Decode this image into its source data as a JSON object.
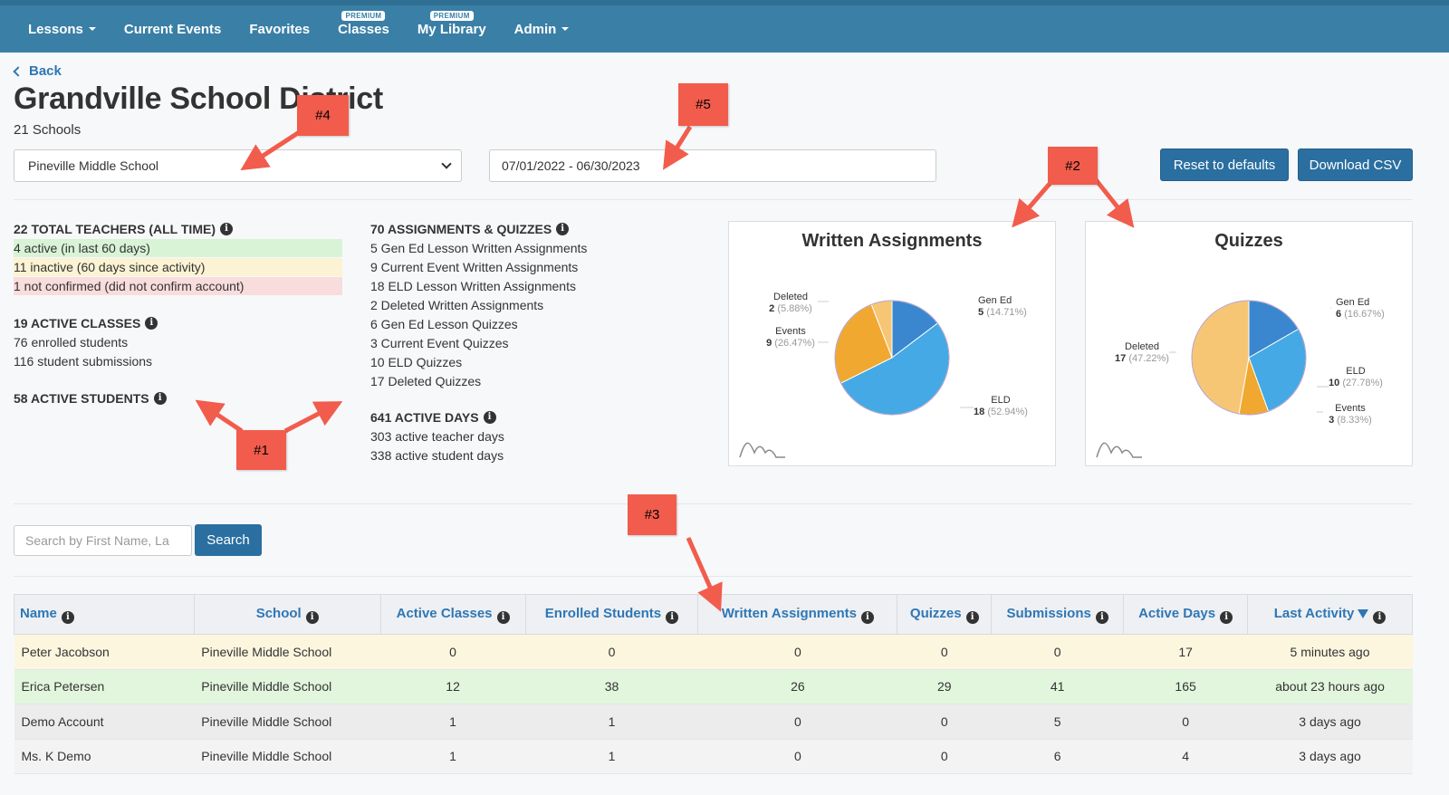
{
  "nav": {
    "items": [
      {
        "label": "Lessons",
        "caret": true,
        "badge": ""
      },
      {
        "label": "Current Events",
        "caret": false,
        "badge": ""
      },
      {
        "label": "Favorites",
        "caret": false,
        "badge": ""
      },
      {
        "label": "Classes",
        "caret": false,
        "badge": "PREMIUM"
      },
      {
        "label": "My Library",
        "caret": false,
        "badge": "PREMIUM"
      },
      {
        "label": "Admin",
        "caret": true,
        "badge": ""
      }
    ]
  },
  "header": {
    "back_label": "Back",
    "title": "Grandville School District",
    "subtitle": "21 Schools"
  },
  "filters": {
    "school_selected": "Pineville Middle School",
    "date_range": "07/01/2022 - 06/30/2023",
    "reset_label": "Reset to defaults",
    "download_label": "Download CSV"
  },
  "stats": {
    "teachers": {
      "heading": "22 TOTAL TEACHERS (ALL TIME)",
      "active": "4 active (in last 60 days)",
      "inactive": "11 inactive (60 days since activity)",
      "unconfirmed": "1 not confirmed (did not confirm account)"
    },
    "classes": {
      "heading": "19 ACTIVE CLASSES",
      "lines": [
        "76 enrolled students",
        "116 student submissions"
      ]
    },
    "students": {
      "heading": "58 ACTIVE STUDENTS"
    },
    "assignments": {
      "heading": "70 ASSIGNMENTS & QUIZZES",
      "lines": [
        "5 Gen Ed Lesson Written Assignments",
        "9 Current Event Written Assignments",
        "18 ELD Lesson Written Assignments",
        "2 Deleted Written Assignments",
        "6 Gen Ed Lesson Quizzes",
        "3 Current Event Quizzes",
        "10 ELD Quizzes",
        "17 Deleted Quizzes"
      ]
    },
    "active_days": {
      "heading": "641 ACTIVE DAYS",
      "lines": [
        "303 active teacher days",
        "338 active student days"
      ]
    }
  },
  "chart_data": [
    {
      "type": "pie",
      "title": "Written Assignments",
      "labels": [
        "Gen Ed",
        "ELD",
        "Events",
        "Deleted"
      ],
      "values": [
        5,
        18,
        9,
        2
      ],
      "percents": [
        "(14.71%)",
        "(52.94%)",
        "(26.47%)",
        "(5.88%)"
      ],
      "colors": [
        "#3a87d0",
        "#44a9e4",
        "#f0a830",
        "#f6c675"
      ]
    },
    {
      "type": "pie",
      "title": "Quizzes",
      "labels": [
        "Gen Ed",
        "ELD",
        "Events",
        "Deleted"
      ],
      "values": [
        6,
        10,
        3,
        17
      ],
      "percents": [
        "(16.67%)",
        "(27.78%)",
        "(8.33%)",
        "(47.22%)"
      ],
      "colors": [
        "#3a87d0",
        "#44a9e4",
        "#f0a830",
        "#f6c675"
      ]
    }
  ],
  "search": {
    "placeholder": "Search by First Name, La",
    "button_label": "Search"
  },
  "table": {
    "columns": [
      "Name",
      "School",
      "Active Classes",
      "Enrolled Students",
      "Written Assignments",
      "Quizzes",
      "Submissions",
      "Active Days",
      "Last Activity"
    ],
    "rows": [
      {
        "cells": [
          "Peter Jacobson",
          "Pineville Middle School",
          "0",
          "0",
          "0",
          "0",
          "0",
          "17",
          "5 minutes ago"
        ],
        "color": "#fcf6de"
      },
      {
        "cells": [
          "Erica Petersen",
          "Pineville Middle School",
          "12",
          "38",
          "26",
          "29",
          "41",
          "165",
          "about 23 hours ago"
        ],
        "color": "#e2f6dd"
      },
      {
        "cells": [
          "Demo Account",
          "Pineville Middle School",
          "1",
          "1",
          "0",
          "0",
          "5",
          "0",
          "3 days ago"
        ],
        "color": "#ececec"
      },
      {
        "cells": [
          "Ms. K Demo",
          "Pineville Middle School",
          "1",
          "1",
          "0",
          "0",
          "6",
          "4",
          "3 days ago"
        ],
        "color": "#f3f3f3"
      }
    ]
  },
  "annotations": [
    "#1",
    "#2",
    "#3",
    "#4",
    "#5"
  ]
}
